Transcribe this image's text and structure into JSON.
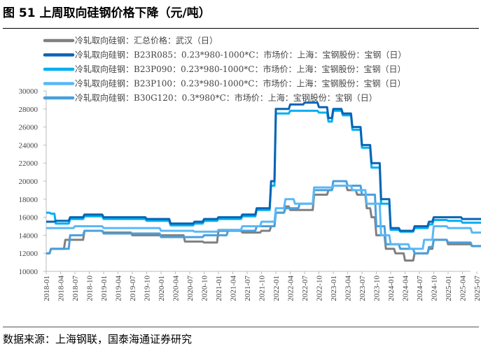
{
  "title": "图 51  上周取向硅钢价格下降（元/吨）",
  "source": "数据来源：上海钢联，国泰海通证券研究",
  "chart_data": {
    "type": "line",
    "title": "上周取向硅钢价格下降（元/吨）",
    "ylim": [
      10000,
      30000
    ],
    "yticks": [
      10000,
      12000,
      14000,
      16000,
      18000,
      20000,
      22000,
      24000,
      26000,
      28000,
      30000
    ],
    "xticks": [
      "2018-01",
      "2018-04",
      "2018-07",
      "2018-10",
      "2019-01",
      "2019-04",
      "2019-07",
      "2019-10",
      "2020-01",
      "2020-04",
      "2020-07",
      "2020-10",
      "2021-01",
      "2021-04",
      "2021-07",
      "2021-10",
      "2022-01",
      "2022-04",
      "2022-07",
      "2022-10",
      "2023-01",
      "2023-04",
      "2023-07",
      "2023-10",
      "2024-01",
      "2024-04",
      "2024-07",
      "2024-10",
      "2025-01",
      "2025-04",
      "2025-07"
    ],
    "xrange": [
      "2018-01",
      "2025-09"
    ],
    "legend_position": "top-left",
    "series": [
      {
        "name": "冷轧取向硅钢：汇总价格：武汉（日）",
        "color": "#808080",
        "x": [
          "2018-01",
          "2018-02",
          "2018-05",
          "2018-09",
          "2019-01",
          "2019-07",
          "2020-03",
          "2020-06",
          "2020-10",
          "2021-01",
          "2021-06",
          "2021-10",
          "2021-12",
          "2022-01",
          "2022-03",
          "2022-04",
          "2022-08",
          "2022-09",
          "2022-12",
          "2023-01",
          "2023-04",
          "2023-06",
          "2023-08",
          "2023-09",
          "2023-10",
          "2023-12",
          "2024-02",
          "2024-04",
          "2024-06",
          "2024-09",
          "2024-10",
          "2025-01",
          "2025-06",
          "2025-09"
        ],
        "values": [
          12000,
          12500,
          13500,
          14500,
          14300,
          14000,
          14000,
          13300,
          13200,
          14500,
          14300,
          14500,
          15000,
          16500,
          17200,
          16800,
          16800,
          18500,
          19000,
          19500,
          19000,
          18500,
          17000,
          16000,
          14000,
          12500,
          12000,
          11200,
          12000,
          12500,
          13500,
          13000,
          12800,
          12200
        ]
      },
      {
        "name": "冷轧取向硅钢：B23R085：0.23*980-1000*C：市场价：上海：宝钢股份：宝钢（日）",
        "color": "#0a64b4",
        "x": [
          "2018-01",
          "2018-03",
          "2018-06",
          "2018-09",
          "2019-01",
          "2019-10",
          "2020-03",
          "2020-08",
          "2020-10",
          "2021-01",
          "2021-06",
          "2021-09",
          "2021-12",
          "2022-01",
          "2022-04",
          "2022-07",
          "2022-10",
          "2022-12",
          "2023-01",
          "2023-03",
          "2023-05",
          "2023-07",
          "2023-09",
          "2023-11",
          "2024-01",
          "2024-03",
          "2024-06",
          "2024-09",
          "2024-10",
          "2025-01",
          "2025-04",
          "2025-09"
        ],
        "values": [
          15500,
          15600,
          16000,
          16300,
          16000,
          15800,
          15300,
          15500,
          15800,
          16000,
          16300,
          17000,
          20000,
          28000,
          28500,
          28700,
          28200,
          27000,
          28000,
          27500,
          26000,
          24000,
          22000,
          18000,
          14800,
          14500,
          15000,
          15500,
          16000,
          16000,
          15800,
          15200
        ]
      },
      {
        "name": "冷轧取向硅钢：B23P090：0.23*980-1000*C：市场价：上海：宝钢股份：宝钢（日）",
        "color": "#00b0f0",
        "x": [
          "2018-01",
          "2018-02",
          "2018-03",
          "2018-06",
          "2018-09",
          "2019-01",
          "2019-10",
          "2020-03",
          "2020-08",
          "2020-10",
          "2021-01",
          "2021-06",
          "2021-09",
          "2021-12",
          "2022-01",
          "2022-04",
          "2022-07",
          "2022-10",
          "2022-12",
          "2023-01",
          "2023-03",
          "2023-05",
          "2023-07",
          "2023-09",
          "2023-11",
          "2024-01",
          "2024-03",
          "2024-06",
          "2024-09",
          "2024-10",
          "2025-01",
          "2025-04",
          "2025-09"
        ],
        "values": [
          16500,
          16400,
          15300,
          15800,
          16100,
          15800,
          15600,
          15100,
          15300,
          15600,
          15800,
          16100,
          16800,
          19500,
          27500,
          27800,
          27800,
          27600,
          26600,
          27800,
          27300,
          25700,
          23700,
          21500,
          17500,
          14600,
          14400,
          14800,
          15200,
          15700,
          15600,
          15400,
          14800
        ]
      },
      {
        "name": "冷轧取向硅钢：B23P100：0.23*980-1000*C：市场价：上海：宝钢股份：宝钢（日）",
        "color": "#5ab8f5",
        "x": [
          "2018-01",
          "2018-07",
          "2019-01",
          "2020-01",
          "2020-08",
          "2021-01",
          "2021-06",
          "2021-10",
          "2022-01",
          "2022-03",
          "2022-05",
          "2022-08",
          "2022-09",
          "2023-01",
          "2023-05",
          "2023-08",
          "2023-11",
          "2024-01",
          "2024-05",
          "2024-08",
          "2024-10",
          "2025-01",
          "2025-06",
          "2025-09"
        ],
        "values": [
          14800,
          15000,
          14800,
          14500,
          14400,
          14600,
          15000,
          15500,
          17000,
          18000,
          17500,
          17500,
          19300,
          19500,
          19000,
          17500,
          14000,
          13000,
          12500,
          13500,
          15000,
          14800,
          14300,
          13500
        ]
      },
      {
        "name": "冷轧取向硅钢：B30G120：0.3*980*C：市场价：上海：宝钢股份：宝钢（日）",
        "color": "#4a9fdc",
        "x": [
          "2018-01",
          "2018-02",
          "2018-06",
          "2018-09",
          "2019-01",
          "2020-01",
          "2020-10",
          "2021-03",
          "2021-09",
          "2022-01",
          "2022-03",
          "2022-06",
          "2022-09",
          "2023-01",
          "2023-04",
          "2023-07",
          "2023-10",
          "2023-12",
          "2024-03",
          "2024-06",
          "2024-09",
          "2024-10",
          "2025-01",
          "2025-06",
          "2025-09"
        ],
        "values": [
          12000,
          12500,
          14000,
          14500,
          14200,
          13800,
          14000,
          14500,
          15000,
          16500,
          17000,
          17500,
          19000,
          20000,
          19500,
          18500,
          15000,
          13000,
          12500,
          12000,
          12700,
          13500,
          13200,
          12800,
          12500
        ]
      }
    ]
  }
}
